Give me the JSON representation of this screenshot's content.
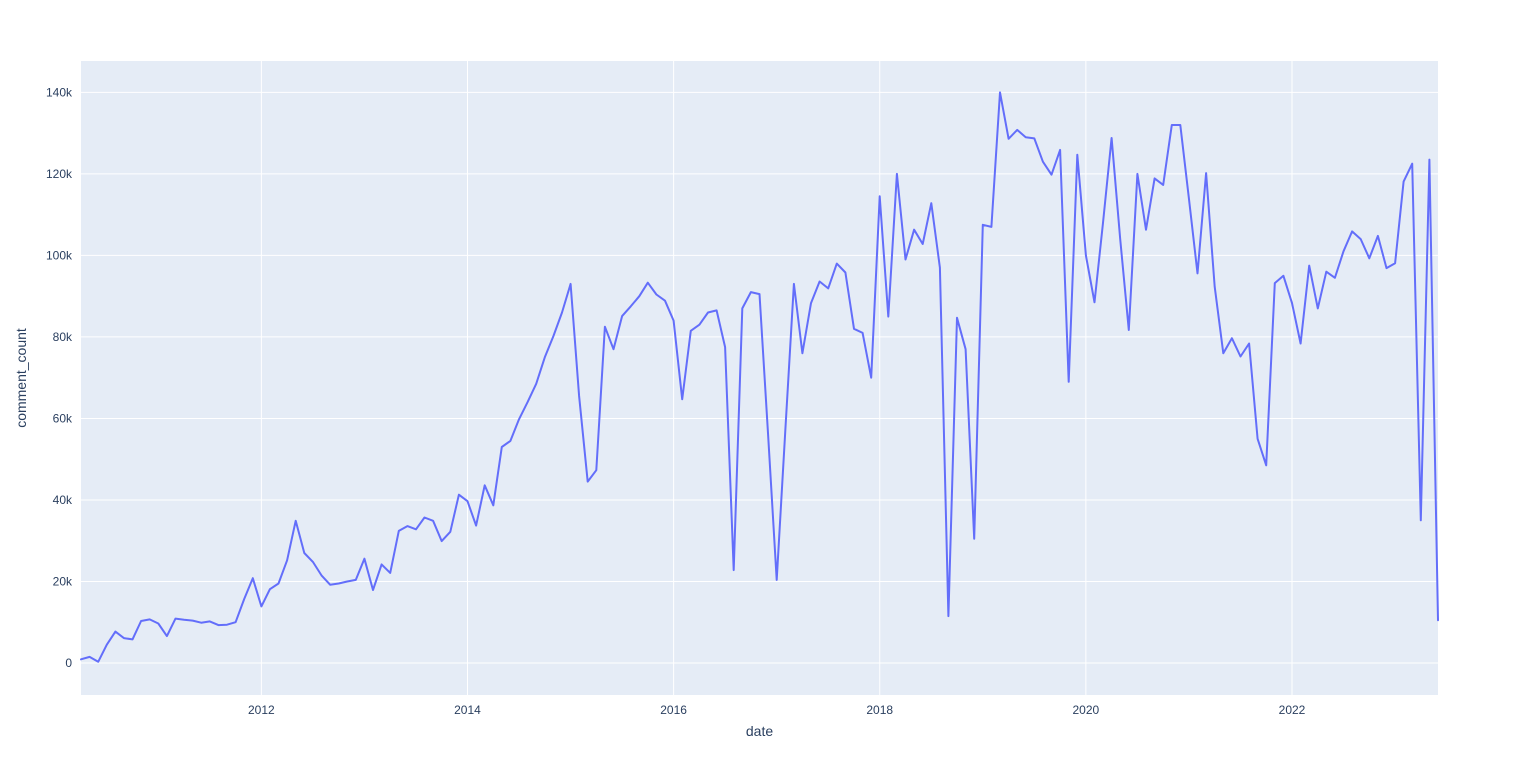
{
  "chart_data": {
    "type": "line",
    "title": "",
    "xlabel": "date",
    "ylabel": "comment_count",
    "legend_position": "none",
    "grid": true,
    "plot_bgcolor": "#e5ecf6",
    "grid_color": "#ffffff",
    "line_color": "#636efa",
    "text_color": "#2a3f5f",
    "ylim": [
      -7850,
      147700
    ],
    "y_tick_values": [
      0,
      20000,
      40000,
      60000,
      80000,
      100000,
      120000,
      140000
    ],
    "y_tick_labels": [
      "0",
      "20k",
      "40k",
      "60k",
      "80k",
      "100k",
      "120k",
      "140k"
    ],
    "x_tick_labels": [
      "2012",
      "2014",
      "2016",
      "2018",
      "2020",
      "2022"
    ],
    "x": [
      "2010-04",
      "2010-05",
      "2010-06",
      "2010-07",
      "2010-08",
      "2010-09",
      "2010-10",
      "2010-11",
      "2010-12",
      "2011-01",
      "2011-02",
      "2011-03",
      "2011-04",
      "2011-05",
      "2011-06",
      "2011-07",
      "2011-08",
      "2011-09",
      "2011-10",
      "2011-11",
      "2011-12",
      "2012-01",
      "2012-02",
      "2012-03",
      "2012-04",
      "2012-05",
      "2012-06",
      "2012-07",
      "2012-08",
      "2012-09",
      "2012-10",
      "2012-11",
      "2012-12",
      "2013-01",
      "2013-02",
      "2013-03",
      "2013-04",
      "2013-05",
      "2013-06",
      "2013-07",
      "2013-08",
      "2013-09",
      "2013-10",
      "2013-11",
      "2013-12",
      "2014-01",
      "2014-02",
      "2014-03",
      "2014-04",
      "2014-05",
      "2014-06",
      "2014-07",
      "2014-08",
      "2014-09",
      "2014-10",
      "2014-11",
      "2014-12",
      "2015-01",
      "2015-02",
      "2015-03",
      "2015-04",
      "2015-05",
      "2015-06",
      "2015-07",
      "2015-08",
      "2015-09",
      "2015-10",
      "2015-11",
      "2015-12",
      "2016-01",
      "2016-02",
      "2016-03",
      "2016-04",
      "2016-05",
      "2016-06",
      "2016-07",
      "2016-08",
      "2016-09",
      "2016-10",
      "2016-11",
      "2016-12",
      "2017-01",
      "2017-02",
      "2017-03",
      "2017-04",
      "2017-05",
      "2017-06",
      "2017-07",
      "2017-08",
      "2017-09",
      "2017-10",
      "2017-11",
      "2017-12",
      "2018-01",
      "2018-02",
      "2018-03",
      "2018-04",
      "2018-05",
      "2018-06",
      "2018-07",
      "2018-08",
      "2018-09",
      "2018-10",
      "2018-11",
      "2018-12",
      "2019-01",
      "2019-02",
      "2019-03",
      "2019-04",
      "2019-05",
      "2019-06",
      "2019-07",
      "2019-08",
      "2019-09",
      "2019-10",
      "2019-11",
      "2019-12",
      "2020-01",
      "2020-02",
      "2020-03",
      "2020-04",
      "2020-05",
      "2020-06",
      "2020-07",
      "2020-08",
      "2020-09",
      "2020-10",
      "2020-11",
      "2020-12",
      "2021-01",
      "2021-02",
      "2021-03",
      "2021-04",
      "2021-05",
      "2021-06",
      "2021-07",
      "2021-08",
      "2021-09",
      "2021-10",
      "2021-11",
      "2021-12",
      "2022-01",
      "2022-02",
      "2022-03",
      "2022-04",
      "2022-05",
      "2022-06",
      "2022-07",
      "2022-08",
      "2022-09",
      "2022-10",
      "2022-11",
      "2022-12",
      "2023-01",
      "2023-02",
      "2023-03",
      "2023-04",
      "2023-05",
      "2023-06"
    ],
    "values": [
      900,
      1500,
      300,
      4500,
      7700,
      6100,
      5800,
      10300,
      10700,
      9700,
      6600,
      10900,
      10600,
      10400,
      9900,
      10200,
      9300,
      9400,
      10000,
      15700,
      20800,
      13900,
      18100,
      19500,
      25200,
      34900,
      27000,
      24800,
      21500,
      19200,
      19500,
      20000,
      20400,
      25600,
      17900,
      24200,
      22100,
      32400,
      33600,
      32800,
      35700,
      34900,
      29900,
      32200,
      41300,
      39700,
      33700,
      43600,
      38700,
      53000,
      54500,
      59800,
      64000,
      68500,
      75000,
      80200,
      86000,
      93000,
      65500,
      44500,
      47300,
      82500,
      77000,
      85100,
      87500,
      90000,
      93300,
      90400,
      88900,
      84000,
      64700,
      81500,
      83000,
      86000,
      86500,
      77500,
      22800,
      87000,
      91000,
      90500,
      56000,
      20400,
      57000,
      93000,
      76000,
      88300,
      93600,
      91900,
      98000,
      95800,
      82000,
      81000,
      70000,
      114500,
      85000,
      120000,
      99000,
      106300,
      102800,
      112800,
      97000,
      11500,
      84700,
      77000,
      30500,
      107500,
      107000,
      140000,
      128600,
      130800,
      129000,
      128700,
      123000,
      119800,
      125900,
      69000,
      124700,
      100000,
      88500,
      108000,
      128800,
      104000,
      81700,
      120000,
      106300,
      118900,
      117300,
      132000,
      132000,
      114000,
      95600,
      120200,
      92300,
      76000,
      79700,
      75200,
      78400,
      55000,
      48500,
      93200,
      95000,
      88300,
      78400,
      97500,
      87000,
      96000,
      94500,
      101000,
      105900,
      104000,
      99300,
      104800,
      96900,
      98100,
      118100,
      122500,
      35000,
      123500,
      10500
    ]
  }
}
